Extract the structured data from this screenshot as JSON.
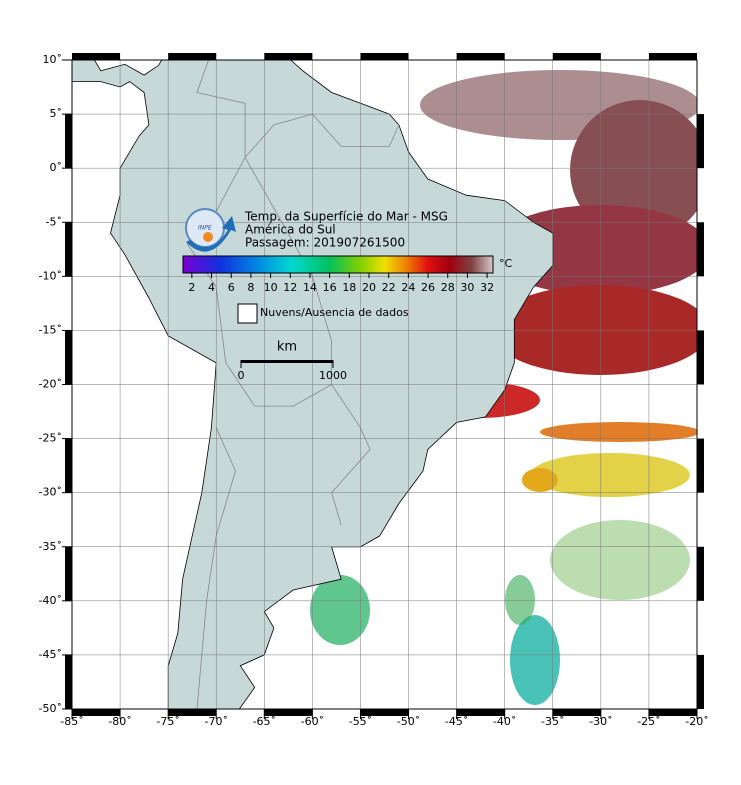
{
  "map": {
    "title_lines": [
      "Temp. da Superfície do Mar - MSG",
      "América do Sul",
      "Passagem: 201907261500"
    ],
    "logo": "INPE",
    "colorbar": {
      "unit": "°C",
      "range": [
        1.1,
        32.6
      ],
      "ticks": [
        2,
        4,
        6,
        8,
        10,
        12,
        14,
        16,
        18,
        20,
        22,
        24,
        26,
        28,
        30,
        32
      ]
    },
    "legend": "Nuvens/Ausencia de dados",
    "scale": {
      "unit": "km",
      "ticks": [
        0,
        1000
      ]
    },
    "lon_range": [
      -85,
      -20
    ],
    "lat_range": [
      -50,
      10
    ],
    "lat_ticks": [
      {
        "value": 10,
        "label": "10˚"
      },
      {
        "value": 5,
        "label": "5˚"
      },
      {
        "value": 0,
        "label": "0˚"
      },
      {
        "value": -5,
        "label": "-5˚"
      },
      {
        "value": -10,
        "label": "-10˚"
      },
      {
        "value": -15,
        "label": "-15˚"
      },
      {
        "value": -20,
        "label": "-20˚"
      },
      {
        "value": -25,
        "label": "-25˚"
      },
      {
        "value": -30,
        "label": "-30˚"
      },
      {
        "value": -35,
        "label": "-35˚"
      },
      {
        "value": -40,
        "label": "-40˚"
      },
      {
        "value": -45,
        "label": "-45˚"
      },
      {
        "value": -50,
        "label": "-50˚"
      }
    ],
    "lon_ticks": [
      {
        "value": -85,
        "label": "-85˚"
      },
      {
        "value": -80,
        "label": "-80˚"
      },
      {
        "value": -75,
        "label": "-75˚"
      },
      {
        "value": -70,
        "label": "-70˚"
      },
      {
        "value": -65,
        "label": "-65˚"
      },
      {
        "value": -60,
        "label": "-60˚"
      },
      {
        "value": -55,
        "label": "-55˚"
      },
      {
        "value": -50,
        "label": "-50˚"
      },
      {
        "value": -45,
        "label": "-45˚"
      },
      {
        "value": -40,
        "label": "-40˚"
      },
      {
        "value": -35,
        "label": "-35˚"
      },
      {
        "value": -30,
        "label": "-30˚"
      },
      {
        "value": -25,
        "label": "-25˚"
      },
      {
        "value": -20,
        "label": "-20˚"
      }
    ]
  }
}
